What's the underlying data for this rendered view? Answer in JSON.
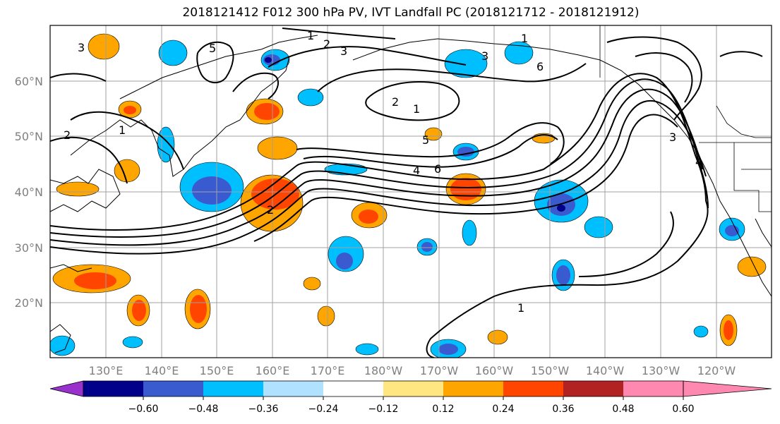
{
  "title": "2018121412 F012 300 hPa PV, IVT Landfall PC (2018121712 - 2018121912)",
  "map": {
    "lat_labels": [
      "60°N",
      "50°N",
      "40°N",
      "30°N",
      "20°N"
    ],
    "lon_labels": [
      "130°E",
      "140°E",
      "150°E",
      "160°E",
      "170°E",
      "180°W",
      "170°W",
      "160°W",
      "150°W",
      "140°W",
      "130°W",
      "120°W"
    ],
    "contour_labels": [
      "1",
      "2",
      "3",
      "3",
      "5",
      "6",
      "2",
      "1",
      "5",
      "4",
      "6",
      "2",
      "2",
      "1",
      "4",
      "1",
      "1",
      "3",
      "3"
    ],
    "colors": {
      "contour": "#000000",
      "grid": "#a0a0a0",
      "coast": "#000000"
    }
  },
  "colorbar": {
    "tick_labels": [
      "−0.60",
      "−0.48",
      "−0.36",
      "−0.24",
      "−0.12",
      "0.12",
      "0.24",
      "0.36",
      "0.48",
      "0.60"
    ],
    "colors": [
      "#9932cc",
      "#00008b",
      "#3a5bcf",
      "#00bfff",
      "#b0e2ff",
      "#ffffff",
      "#ffe680",
      "#ffa500",
      "#ff4500",
      "#b22222",
      "#ff88b0"
    ]
  }
}
